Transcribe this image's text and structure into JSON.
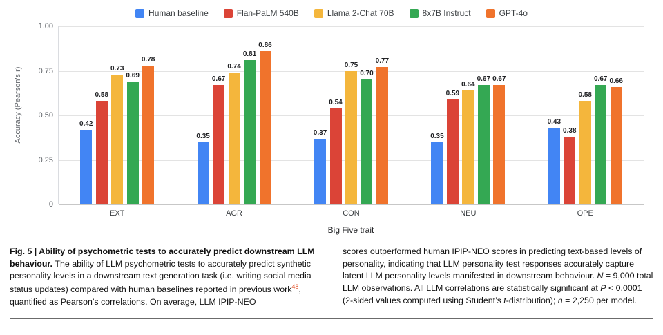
{
  "chart_data": {
    "type": "bar",
    "title": "",
    "xlabel": "Big Five trait",
    "ylabel": "Accuracy (Pearson's r)",
    "ylim": [
      0,
      1.0
    ],
    "grid": true,
    "legend_position": "top",
    "categories": [
      "EXT",
      "AGR",
      "CON",
      "NEU",
      "OPE"
    ],
    "series": [
      {
        "name": "Human baseline",
        "color": "#4285F4",
        "values": [
          0.42,
          0.35,
          0.37,
          0.35,
          0.43
        ]
      },
      {
        "name": "Flan-PaLM 540B",
        "color": "#DB4437",
        "values": [
          0.58,
          0.67,
          0.54,
          0.59,
          0.38
        ]
      },
      {
        "name": "Llama 2-Chat 70B",
        "color": "#F4B63C",
        "values": [
          0.73,
          0.74,
          0.75,
          0.64,
          0.58
        ]
      },
      {
        "name": "8x7B Instruct",
        "color": "#34A853",
        "values": [
          0.69,
          0.81,
          0.7,
          0.67,
          0.67
        ]
      },
      {
        "name": "GPT-4o",
        "color": "#F0732C",
        "values": [
          0.78,
          0.86,
          0.77,
          0.67,
          0.66
        ]
      }
    ],
    "yticks": [
      {
        "value": 0,
        "label": "0"
      },
      {
        "value": 0.25,
        "label": "0.25"
      },
      {
        "value": 0.5,
        "label": "0.50"
      },
      {
        "value": 0.75,
        "label": "0.75"
      },
      {
        "value": 1.0,
        "label": "1.00"
      }
    ]
  },
  "caption": {
    "left": [
      {
        "text": "Fig. 5 | Ability of psychometric tests to accurately predict downstream LLM behaviour. ",
        "bold": true
      },
      {
        "text": "The ability of LLM psychometric tests to accurately predict synthetic personality levels in a downstream text generation task (i.e. writing social media status updates) compared with human baselines reported in previous work"
      },
      {
        "text": "48",
        "sup": true,
        "color": "#E4572E",
        "name": "reference-link",
        "interactable": true
      },
      {
        "text": ", quantified as Pearson’s correlations. On average, LLM IPIP-NEO"
      }
    ],
    "right": [
      {
        "text": "scores outperformed human IPIP-NEO scores in predicting text-based levels of personality, indicating that LLM personality test responses accurately capture latent LLM personality levels manifested in downstream behaviour. "
      },
      {
        "text": "N",
        "italic": true
      },
      {
        "text": " = 9,000 total LLM observations. All LLM correlations are statistically significant at "
      },
      {
        "text": "P",
        "italic": true
      },
      {
        "text": " < 0.0001 (2-sided values computed using Student’s "
      },
      {
        "text": "t",
        "italic": true
      },
      {
        "text": "-distribution); "
      },
      {
        "text": "n",
        "italic": true
      },
      {
        "text": " = 2,250 per model."
      }
    ]
  }
}
